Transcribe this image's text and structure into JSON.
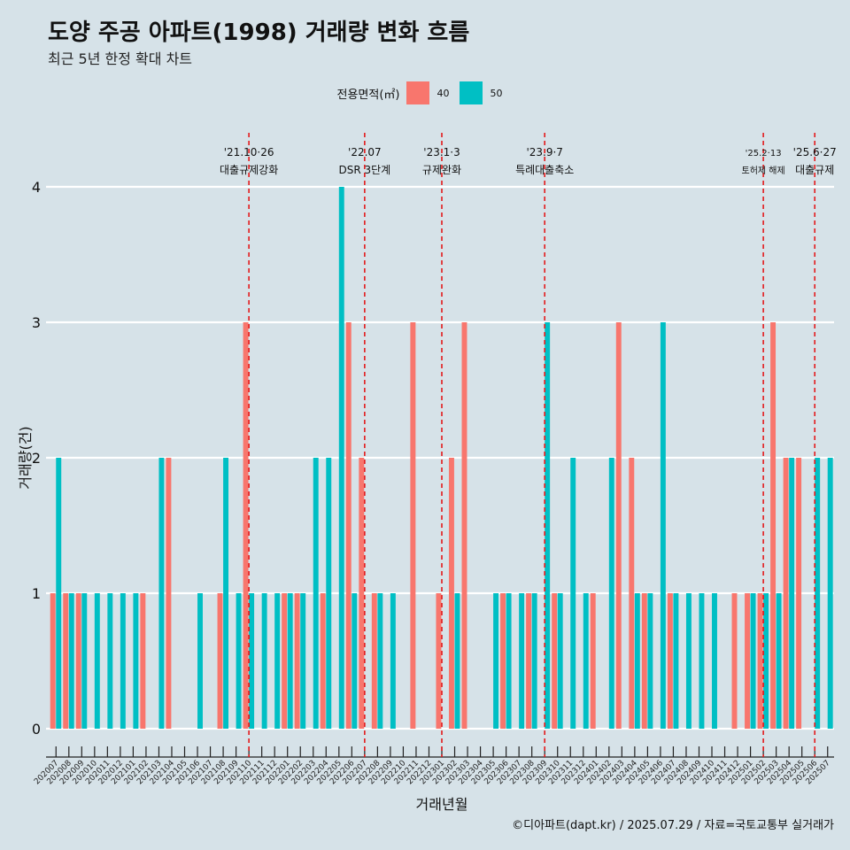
{
  "header": {
    "title": "도양 주공 아파트(1998) 거래량 변화 흐름",
    "subtitle": "최근 5년 한정 확대 차트"
  },
  "legend": {
    "title": "전용면적(㎡)",
    "items": [
      {
        "label": "40",
        "color": "#f8766d"
      },
      {
        "label": "50",
        "color": "#00bfc4"
      }
    ]
  },
  "caption": "©디아파트(dapt.kr) / 2025.07.29 / 자료=국토교통부 실거래가",
  "chart_data": {
    "type": "bar",
    "title": "도양 주공 아파트(1998) 거래량 변화 흐름",
    "xlabel": "거래년월",
    "ylabel": "거래량(건)",
    "ylim": [
      0,
      4
    ],
    "yticks": [
      0,
      1,
      2,
      3,
      4
    ],
    "categories": [
      "202007",
      "202008",
      "202009",
      "202010",
      "202011",
      "202012",
      "202101",
      "202102",
      "202103",
      "202104",
      "202105",
      "202106",
      "202107",
      "202108",
      "202109",
      "202110",
      "202111",
      "202112",
      "202201",
      "202202",
      "202203",
      "202204",
      "202205",
      "202206",
      "202207",
      "202208",
      "202209",
      "202210",
      "202211",
      "202212",
      "202301",
      "202302",
      "202303",
      "202304",
      "202305",
      "202306",
      "202307",
      "202308",
      "202309",
      "202310",
      "202311",
      "202312",
      "202401",
      "202402",
      "202403",
      "202404",
      "202405",
      "202406",
      "202407",
      "202408",
      "202409",
      "202410",
      "202411",
      "202412",
      "202501",
      "202502",
      "202503",
      "202504",
      "202505",
      "202506",
      "202507"
    ],
    "series": [
      {
        "name": "40",
        "color": "#f8766d",
        "values": [
          1,
          1,
          1,
          0,
          0,
          0,
          0,
          1,
          0,
          2,
          0,
          0,
          0,
          1,
          0,
          3,
          0,
          0,
          1,
          1,
          0,
          1,
          0,
          3,
          2,
          1,
          0,
          0,
          3,
          0,
          1,
          2,
          3,
          0,
          0,
          1,
          0,
          1,
          0,
          1,
          0,
          0,
          1,
          0,
          3,
          2,
          1,
          0,
          1,
          0,
          0,
          0,
          0,
          1,
          1,
          1,
          3,
          2,
          2,
          0,
          0
        ]
      },
      {
        "name": "50",
        "color": "#00bfc4",
        "values": [
          2,
          1,
          1,
          1,
          1,
          1,
          1,
          0,
          2,
          0,
          0,
          1,
          0,
          2,
          1,
          1,
          1,
          1,
          1,
          1,
          2,
          2,
          4,
          1,
          0,
          1,
          1,
          0,
          0,
          0,
          0,
          1,
          0,
          0,
          1,
          1,
          1,
          1,
          3,
          1,
          2,
          1,
          0,
          2,
          0,
          1,
          1,
          3,
          1,
          1,
          1,
          1,
          0,
          0,
          1,
          1,
          1,
          2,
          0,
          2,
          2
        ]
      }
    ],
    "annotations": [
      {
        "date": "'21.10·26",
        "label": "대출규제강화",
        "month": "202110"
      },
      {
        "date": "'22.07",
        "label": "DSR 3단계",
        "month": "202207"
      },
      {
        "date": "'23.1·3",
        "label": "규제완화",
        "month": "202301"
      },
      {
        "date": "'23.9·7",
        "label": "특례대출축소",
        "month": "202309"
      },
      {
        "date": "'25.2·13",
        "label": "토허제 해제",
        "month": "202502"
      },
      {
        "date": "'25.6·27",
        "label": "대출규제",
        "month": "202506"
      }
    ]
  }
}
